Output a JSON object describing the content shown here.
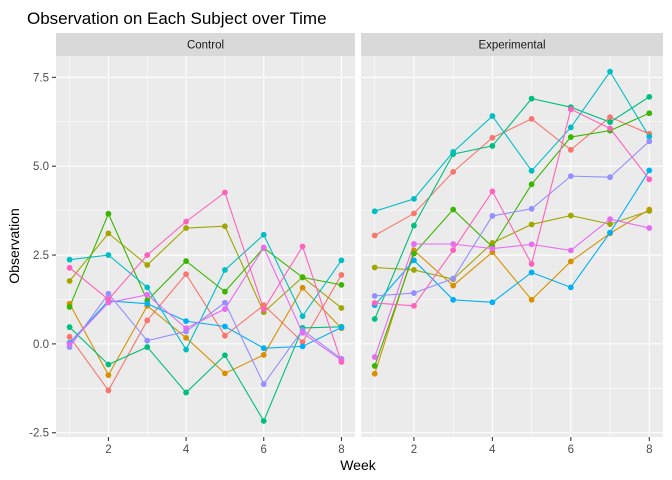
{
  "chart_data": {
    "type": "line",
    "title": "Observation on Each Subject over Time",
    "xlabel": "Week",
    "ylabel": "Observation",
    "xlim": [
      0.65,
      8.35
    ],
    "ylim": [
      -2.62,
      8.1
    ],
    "x_ticks": [
      2,
      4,
      6,
      8
    ],
    "x_tick_labels": [
      "2",
      "4",
      "6",
      "8"
    ],
    "y_ticks": [
      -2.5,
      0.0,
      2.5,
      5.0,
      7.5
    ],
    "y_tick_labels": [
      "-2.5",
      "0.0",
      "2.5",
      "5.0",
      "7.5"
    ],
    "grid": true,
    "panel_background": "#ebebeb",
    "strip_background": "#d9d9d9",
    "facets": [
      {
        "label": "Control",
        "series": [
          {
            "color": "#F8766D",
            "x": [
              1,
              2,
              3,
              4,
              5,
              6,
              7,
              8
            ],
            "values": [
              0.2,
              -1.31,
              0.66,
              1.96,
              0.23,
              1.09,
              0.05,
              1.94
            ]
          },
          {
            "color": "#D89000",
            "x": [
              1,
              2,
              3,
              4,
              5,
              6,
              7,
              8
            ],
            "values": [
              1.13,
              -0.88,
              1.07,
              0.17,
              -0.83,
              -0.31,
              1.58,
              0.44
            ]
          },
          {
            "color": "#A3A500",
            "x": [
              1,
              2,
              3,
              4,
              5,
              6,
              7,
              8
            ],
            "values": [
              1.77,
              3.11,
              2.22,
              3.26,
              3.31,
              0.89,
              1.88,
              1.01
            ]
          },
          {
            "color": "#39B600",
            "x": [
              1,
              2,
              3,
              4,
              5,
              6,
              7,
              8
            ],
            "values": [
              1.04,
              3.66,
              1.22,
              2.33,
              1.47,
              2.7,
              1.87,
              1.66
            ]
          },
          {
            "color": "#00BF7D",
            "x": [
              1,
              2,
              3,
              4,
              5,
              6,
              7,
              8
            ],
            "values": [
              0.47,
              -0.58,
              -0.09,
              -1.37,
              -0.32,
              -2.17,
              0.45,
              0.48
            ]
          },
          {
            "color": "#00BFC4",
            "x": [
              1,
              2,
              3,
              4,
              5,
              6,
              7,
              8
            ],
            "values": [
              2.37,
              2.5,
              1.59,
              -0.16,
              2.08,
              3.07,
              0.78,
              2.35
            ]
          },
          {
            "color": "#00B0F6",
            "x": [
              1,
              2,
              3,
              4,
              5,
              6,
              7,
              8
            ],
            "values": [
              0.03,
              1.21,
              1.13,
              0.64,
              0.49,
              -0.12,
              -0.07,
              0.46
            ]
          },
          {
            "color": "#9590FF",
            "x": [
              1,
              2,
              3,
              4,
              5,
              6,
              7,
              8
            ],
            "values": [
              -0.09,
              1.41,
              0.09,
              0.35,
              1.16,
              -1.13,
              0.39,
              -0.42
            ]
          },
          {
            "color": "#E76BF3",
            "x": [
              1,
              2,
              3,
              4,
              5,
              6,
              7,
              8
            ],
            "values": [
              0.0,
              1.16,
              1.38,
              0.44,
              0.98,
              2.71,
              0.31,
              -0.46
            ]
          },
          {
            "color": "#FF62BC",
            "x": [
              1,
              2,
              3,
              4,
              5,
              6,
              7,
              8
            ],
            "values": [
              2.14,
              1.25,
              2.5,
              3.44,
              4.26,
              0.97,
              2.74,
              -0.51
            ]
          }
        ]
      },
      {
        "label": "Experimental",
        "series": [
          {
            "color": "#F8766D",
            "x": [
              1,
              2,
              3,
              4,
              5,
              6,
              7,
              8
            ],
            "values": [
              3.05,
              3.67,
              4.84,
              5.8,
              6.33,
              5.46,
              6.38,
              5.91
            ]
          },
          {
            "color": "#D89000",
            "x": [
              1,
              2,
              3,
              4,
              5,
              6,
              7,
              8
            ],
            "values": [
              -0.84,
              2.63,
              1.64,
              2.58,
              1.24,
              2.32,
              3.11,
              3.78
            ]
          },
          {
            "color": "#A3A500",
            "x": [
              1,
              2,
              3,
              4,
              5,
              6,
              7,
              8
            ],
            "values": [
              2.15,
              2.08,
              1.82,
              2.84,
              3.36,
              3.61,
              3.37,
              3.74
            ]
          },
          {
            "color": "#39B600",
            "x": [
              1,
              2,
              3,
              4,
              5,
              6,
              7,
              8
            ],
            "values": [
              -0.62,
              2.54,
              3.78,
              2.73,
              4.49,
              5.82,
              6.0,
              6.49
            ]
          },
          {
            "color": "#00BF7D",
            "x": [
              1,
              2,
              3,
              4,
              5,
              6,
              7,
              8
            ],
            "values": [
              0.7,
              3.33,
              5.34,
              5.57,
              6.9,
              6.66,
              6.24,
              6.95
            ]
          },
          {
            "color": "#00BFC4",
            "x": [
              1,
              2,
              3,
              4,
              5,
              6,
              7,
              8
            ],
            "values": [
              3.73,
              4.08,
              5.4,
              6.41,
              4.87,
              6.09,
              7.66,
              5.83
            ]
          },
          {
            "color": "#00B0F6",
            "x": [
              1,
              2,
              3,
              4,
              5,
              6,
              7,
              8
            ],
            "values": [
              1.09,
              2.35,
              1.24,
              1.17,
              2.01,
              1.59,
              3.13,
              4.88
            ]
          },
          {
            "color": "#9590FF",
            "x": [
              1,
              2,
              3,
              4,
              5,
              6,
              7,
              8
            ],
            "values": [
              1.35,
              1.43,
              1.84,
              3.6,
              3.8,
              4.72,
              4.69,
              5.7
            ]
          },
          {
            "color": "#E76BF3",
            "x": [
              1,
              2,
              3,
              4,
              5,
              6,
              7,
              8
            ],
            "values": [
              -0.37,
              2.81,
              2.81,
              2.68,
              2.8,
              2.63,
              3.51,
              3.26
            ]
          },
          {
            "color": "#FF62BC",
            "x": [
              1,
              2,
              3,
              4,
              5,
              6,
              7,
              8
            ],
            "values": [
              1.15,
              1.07,
              2.64,
              4.29,
              2.25,
              6.6,
              6.06,
              4.63
            ]
          }
        ]
      }
    ]
  }
}
